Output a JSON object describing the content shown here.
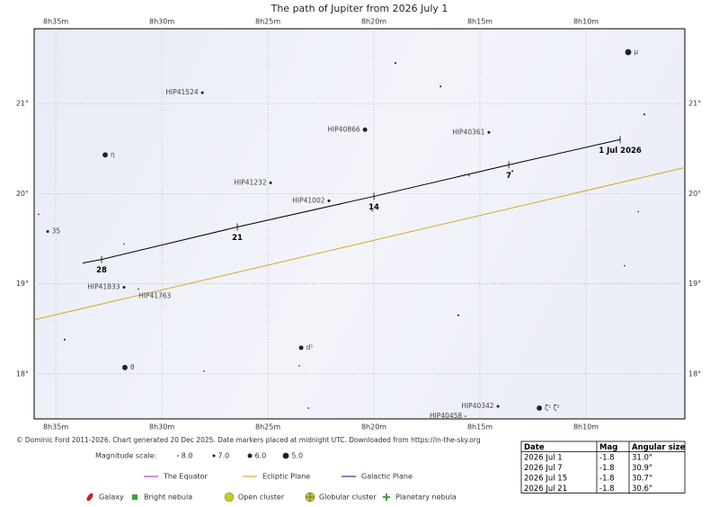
{
  "chart_data": {
    "type": "sky-map",
    "title": "The path of Jupiter from 2026 July 1",
    "xlim": [
      516.02,
      485.34
    ],
    "ylim": [
      17.5,
      21.83
    ],
    "xticks": [
      {
        "value": 515,
        "label": "8h35m"
      },
      {
        "value": 510,
        "label": "8h30m"
      },
      {
        "value": 505,
        "label": "8h25m"
      },
      {
        "value": 500,
        "label": "8h20m"
      },
      {
        "value": 495,
        "label": "8h15m"
      },
      {
        "value": 490,
        "label": "8h10m"
      }
    ],
    "yticks": [
      {
        "value": 18,
        "label": "18°"
      },
      {
        "value": 19,
        "label": "19°"
      },
      {
        "value": 20,
        "label": "20°"
      },
      {
        "value": 21,
        "label": "21°"
      }
    ],
    "grid": true,
    "stars": [
      {
        "x": 488.01,
        "y": 21.57,
        "mag": 5,
        "label": "μ"
      },
      {
        "x": 498.98,
        "y": 21.45,
        "mag": 7.5
      },
      {
        "x": 496.86,
        "y": 21.19,
        "mag": 7.5
      },
      {
        "x": 487.25,
        "y": 20.88,
        "mag": 7.5
      },
      {
        "x": 508.09,
        "y": 21.12,
        "mag": 7,
        "label": "HIP41524"
      },
      {
        "x": 500.42,
        "y": 20.71,
        "mag": 6,
        "label": "HIP40866"
      },
      {
        "x": 494.58,
        "y": 20.68,
        "mag": 7,
        "label": "HIP40361"
      },
      {
        "x": 512.67,
        "y": 20.43,
        "mag": 5.5,
        "label": "η"
      },
      {
        "x": 504.87,
        "y": 20.12,
        "mag": 7,
        "label": "HIP41232"
      },
      {
        "x": 502.12,
        "y": 19.92,
        "mag": 7,
        "label": "HIP41002"
      },
      {
        "x": 495.51,
        "y": 20.2,
        "mag": 8
      },
      {
        "x": 493.47,
        "y": 20.25,
        "mag": 7.5
      },
      {
        "x": 500.08,
        "y": 19.81,
        "mag": 8
      },
      {
        "x": 515.81,
        "y": 19.77,
        "mag": 8
      },
      {
        "x": 487.54,
        "y": 19.8,
        "mag": 8
      },
      {
        "x": 515.38,
        "y": 19.58,
        "mag": 7,
        "label": "35"
      },
      {
        "x": 511.78,
        "y": 19.44,
        "mag": 8
      },
      {
        "x": 488.18,
        "y": 19.2,
        "mag": 8
      },
      {
        "x": 511.78,
        "y": 18.96,
        "mag": 7,
        "label": "HIP41833"
      },
      {
        "x": 511.1,
        "y": 18.94,
        "mag": 8,
        "label": "HIP41763"
      },
      {
        "x": 496.02,
        "y": 18.65,
        "mag": 7.5
      },
      {
        "x": 514.58,
        "y": 18.38,
        "mag": 7.5
      },
      {
        "x": 503.43,
        "y": 18.29,
        "mag": 6,
        "label": "d¹"
      },
      {
        "x": 511.74,
        "y": 18.07,
        "mag": 5.5,
        "label": "θ"
      },
      {
        "x": 503.52,
        "y": 18.09,
        "mag": 8
      },
      {
        "x": 508.01,
        "y": 18.03,
        "mag": 8
      },
      {
        "x": 503.09,
        "y": 17.62,
        "mag": 8
      },
      {
        "x": 494.15,
        "y": 17.64,
        "mag": 7,
        "label": "HIP40342"
      },
      {
        "x": 492.2,
        "y": 17.62,
        "mag": 5.5,
        "label": "ζ¹ ζ²"
      },
      {
        "x": 495.68,
        "y": 17.53,
        "mag": 8,
        "label": "HIP40458"
      }
    ],
    "path": {
      "color": "#000000",
      "x": [
        488.39,
        493.64,
        500.0,
        506.44,
        512.84,
        513.73
      ],
      "y": [
        20.6,
        20.32,
        19.97,
        19.63,
        19.27,
        19.23
      ],
      "labels": [
        "1 Jul 2026",
        "7",
        "14",
        "21",
        "28",
        null
      ]
    },
    "ecliptic": {
      "color": "#d4a82a",
      "x": [
        516.02,
        485.34
      ],
      "y": [
        18.6,
        20.29
      ]
    }
  },
  "credit": "© Dominic Ford 2011-2026. Chart generated 20 Dec 2025. Date markers placed at midnight UTC. Downloaded from https://in-the-sky.org",
  "legend": {
    "magnitude_scale": {
      "label": "Magnitude scale:",
      "items": [
        {
          "value": 8,
          "label": "8.0"
        },
        {
          "value": 7,
          "label": "7.0"
        },
        {
          "value": 6,
          "label": "6.0"
        },
        {
          "value": 5,
          "label": "5.0"
        }
      ]
    },
    "lines": [
      {
        "name": "The Equator",
        "color": "#c040c0"
      },
      {
        "name": "Ecliptic Plane",
        "color": "#d4a82a"
      },
      {
        "name": "Galactic Plane",
        "color": "#303090"
      }
    ],
    "objects": [
      {
        "name": "Galaxy",
        "color": "#cc2222"
      },
      {
        "name": "Bright nebula",
        "color": "#33aa33"
      },
      {
        "name": "Open cluster",
        "color": "#c8c820"
      },
      {
        "name": "Globular cluster",
        "color": "#c8c820"
      },
      {
        "name": "Planetary nebula",
        "color": "#33aa33"
      }
    ]
  },
  "table": {
    "header": [
      "Date",
      "Mag",
      "Angular size"
    ],
    "rows": [
      [
        "2026 Jul 1",
        "-1.8",
        "31.0\""
      ],
      [
        "2026 Jul 7",
        "-1.8",
        "30.9\""
      ],
      [
        "2026 Jul 15",
        "-1.8",
        "30.7\""
      ],
      [
        "2026 Jul 21",
        "-1.8",
        "30.6\""
      ]
    ]
  }
}
